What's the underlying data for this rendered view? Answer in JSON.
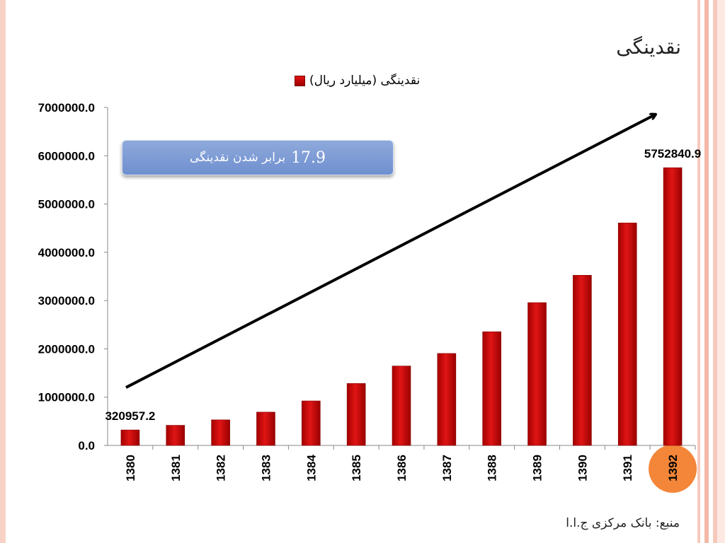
{
  "slide_title": "نقدینگی",
  "source_text": "منبع: بانک مرکزی ج.ا.ا",
  "callout": {
    "number": "17.9",
    "text": "برابر شدن نقدینگی"
  },
  "colors": {
    "bar": "#cc0000",
    "highlight": "#f4863a",
    "stripe": "#f6c6b8",
    "callout": "#7a98d6"
  },
  "chart_data": {
    "type": "bar",
    "categories": [
      "1380",
      "1381",
      "1382",
      "1383",
      "1384",
      "1385",
      "1386",
      "1387",
      "1388",
      "1389",
      "1390",
      "1391",
      "1392"
    ],
    "series": [
      {
        "name": "نقدینگی (میلیارد ریال)",
        "values": [
          320957.2,
          417000,
          530000,
          690000,
          922000,
          1283000,
          1645000,
          1905000,
          2355000,
          2958000,
          3525000,
          4608000,
          5752840.9
        ]
      }
    ],
    "data_labels": [
      {
        "category": "1380",
        "text": "320957.2"
      },
      {
        "category": "1392",
        "text": "5752840.9"
      }
    ],
    "y_ticks": [
      "0.0",
      "1000000.0",
      "2000000.0",
      "3000000.0",
      "4000000.0",
      "5000000.0",
      "6000000.0",
      "7000000.0"
    ],
    "ylim": [
      0,
      7000000
    ],
    "legend_position": "top",
    "highlighted_category": "1392",
    "trend_arrow": true
  }
}
